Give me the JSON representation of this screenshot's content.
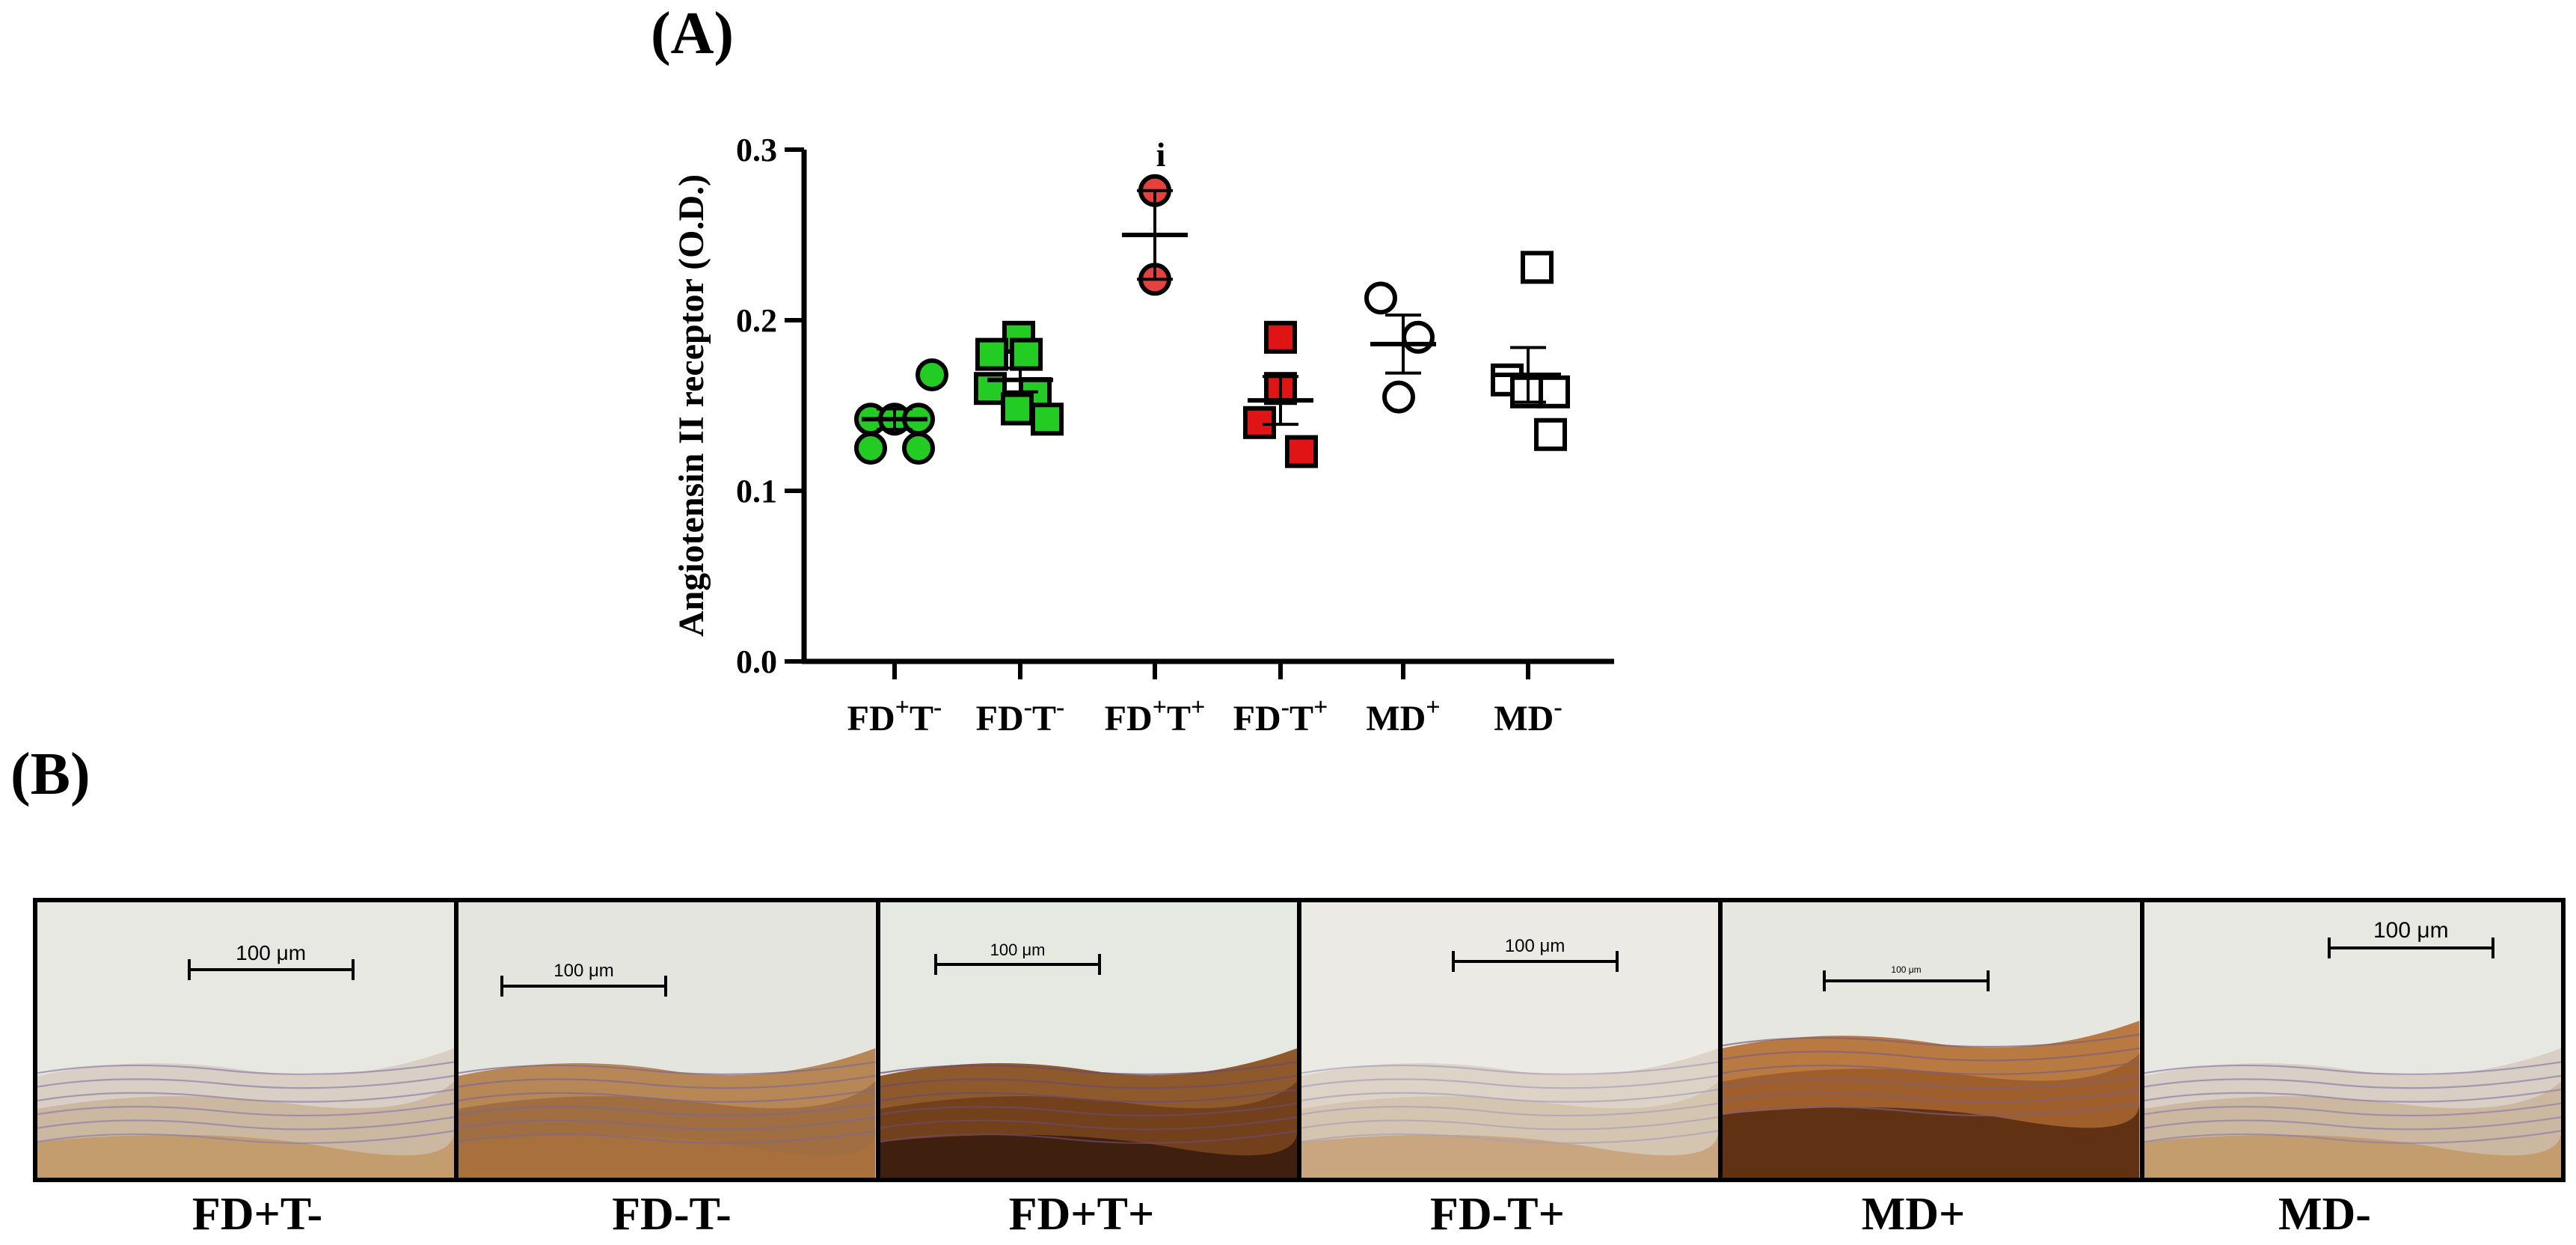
{
  "panels": {
    "a_label": "(A)",
    "b_label": "(B)"
  },
  "chart_data": {
    "type": "scatter",
    "ylabel": "Angiotensin II receptor (O.D.)",
    "ylim": [
      0.0,
      0.3
    ],
    "yticks": [
      "0.0",
      "0.1",
      "0.2",
      "0.3"
    ],
    "categories": [
      {
        "base": "FD",
        "sup1": "+",
        "mid": "T",
        "sup2": "-"
      },
      {
        "base": "FD",
        "sup1": "-",
        "mid": "T",
        "sup2": "-"
      },
      {
        "base": "FD",
        "sup1": "+",
        "mid": "T",
        "sup2": "+"
      },
      {
        "base": "FD",
        "sup1": "-",
        "mid": "T",
        "sup2": "+"
      },
      {
        "base": "MD",
        "sup1": "+",
        "mid": "",
        "sup2": ""
      },
      {
        "base": "MD",
        "sup1": "-",
        "mid": "",
        "sup2": ""
      }
    ],
    "groups": [
      {
        "marker": "circle",
        "fill": "#22cc22",
        "points": [
          0.168,
          0.142,
          0.142,
          0.142,
          0.125,
          0.125
        ],
        "mean": 0.142,
        "sem": 0.006
      },
      {
        "marker": "square",
        "fill": "#22cc22",
        "points": [
          0.19,
          0.18,
          0.18,
          0.16,
          0.157,
          0.148,
          0.142
        ],
        "mean": 0.165,
        "sem": 0.007
      },
      {
        "marker": "circle",
        "fill": "#e8403c",
        "points": [
          0.276,
          0.224
        ],
        "mean": 0.25,
        "sem": 0.026,
        "annotation": "i"
      },
      {
        "marker": "square",
        "fill": "#e01414",
        "points": [
          0.19,
          0.16,
          0.14,
          0.123
        ],
        "mean": 0.153,
        "sem": 0.014
      },
      {
        "marker": "circle",
        "fill": "#ffffff",
        "points": [
          0.213,
          0.19,
          0.155
        ],
        "mean": 0.186,
        "sem": 0.017
      },
      {
        "marker": "square",
        "fill": "#ffffff",
        "points": [
          0.231,
          0.165,
          0.158,
          0.158,
          0.133
        ],
        "mean": 0.168,
        "sem": 0.016
      }
    ]
  },
  "micrographs": [
    {
      "caption": "FD+T-",
      "scale": "100 μm",
      "stain": "light"
    },
    {
      "caption": "FD-T-",
      "scale": "100 μm",
      "stain": "medium"
    },
    {
      "caption": "FD+T+",
      "scale": "100 μm",
      "stain": "dark"
    },
    {
      "caption": "FD-T+",
      "scale": "100 μm",
      "stain": "pale"
    },
    {
      "caption": "MD+",
      "scale": "100 μm",
      "stain": "dark-top"
    },
    {
      "caption": "MD-",
      "scale": "100 μm",
      "stain": "light"
    }
  ]
}
